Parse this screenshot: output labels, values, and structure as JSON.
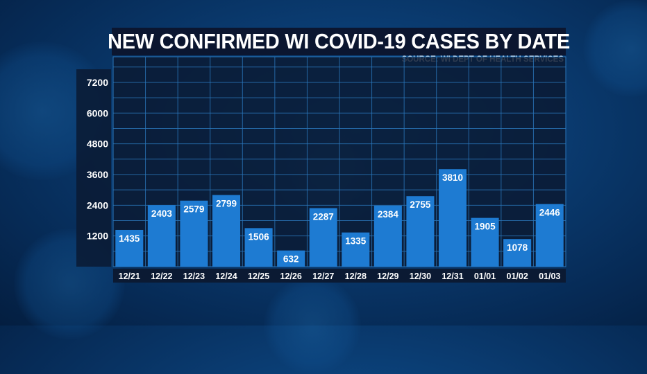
{
  "chart_data": {
    "type": "bar",
    "title": "NEW CONFIRMED WI COVID-19 CASES BY DATE",
    "subtitle": "SOURCE: WI DEPT OF HEALTH SERVICES",
    "categories": [
      "12/21",
      "12/22",
      "12/23",
      "12/24",
      "12/25",
      "12/26",
      "12/27",
      "12/28",
      "12/29",
      "12/30",
      "12/31",
      "01/01",
      "01/02",
      "01/03"
    ],
    "values": [
      1435,
      2403,
      2579,
      2799,
      1506,
      632,
      2287,
      1335,
      2384,
      2755,
      3810,
      1905,
      1078,
      2446
    ],
    "y_ticks": [
      1200,
      2400,
      3600,
      4800,
      6000,
      7200
    ],
    "ylim": [
      0,
      8200
    ],
    "grid": true,
    "colors": {
      "bar": "#1e7bd2",
      "plot_bg": "#0b1a33",
      "grid": "#2a78bd",
      "label_text": "#ffffff"
    }
  }
}
